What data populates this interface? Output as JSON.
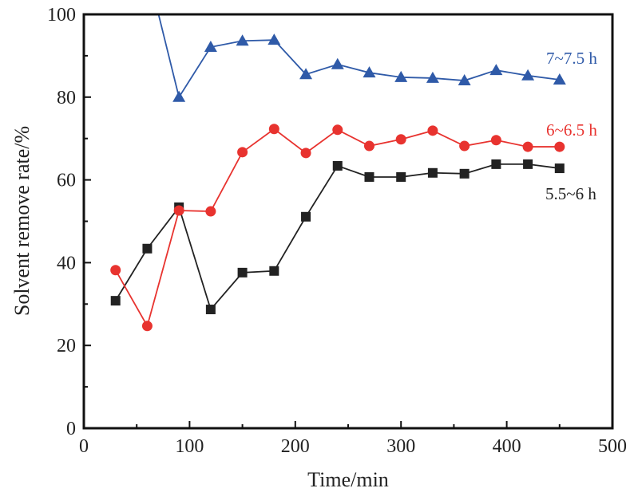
{
  "chart_data": {
    "type": "line",
    "title": "",
    "xlabel": "Time/min",
    "ylabel": "Solvent remove rate/%",
    "xlim": [
      0,
      500
    ],
    "ylim": [
      0,
      100
    ],
    "xticks": [
      "0",
      "100",
      "200",
      "300",
      "400",
      "500"
    ],
    "yticks": [
      "0",
      "20",
      "40",
      "60",
      "80",
      "100"
    ],
    "grid": false,
    "legend": "inline labels at right end of each series",
    "series": [
      {
        "name": "5.5~6 h",
        "color": "#222222",
        "marker": "square",
        "x": [
          30,
          60,
          90,
          120,
          150,
          180,
          210,
          240,
          270,
          300,
          330,
          360,
          390,
          420,
          450
        ],
        "y": [
          30.8,
          43.4,
          53.4,
          28.7,
          37.6,
          38.0,
          51.1,
          63.4,
          60.7,
          60.7,
          61.7,
          61.5,
          63.8,
          63.8,
          62.8
        ]
      },
      {
        "name": "6~6.5 h",
        "color": "#e8332f",
        "marker": "circle",
        "x": [
          30,
          60,
          90,
          120,
          150,
          180,
          210,
          240,
          270,
          300,
          330,
          360,
          390,
          420,
          450
        ],
        "y": [
          38.2,
          24.7,
          52.6,
          52.4,
          66.7,
          72.3,
          66.5,
          72.1,
          68.2,
          69.8,
          71.9,
          68.2,
          69.6,
          68.0,
          68.0
        ]
      },
      {
        "name": "7~7.5 h",
        "color": "#2f5aa8",
        "marker": "triangle",
        "x": [
          60,
          90,
          120,
          150,
          180,
          210,
          240,
          270,
          300,
          330,
          360,
          390,
          420,
          450
        ],
        "y": [
          111,
          80.0,
          92.1,
          93.6,
          93.8,
          85.5,
          87.9,
          85.9,
          84.8,
          84.6,
          84.0,
          86.5,
          85.2,
          84.2
        ]
      }
    ]
  }
}
